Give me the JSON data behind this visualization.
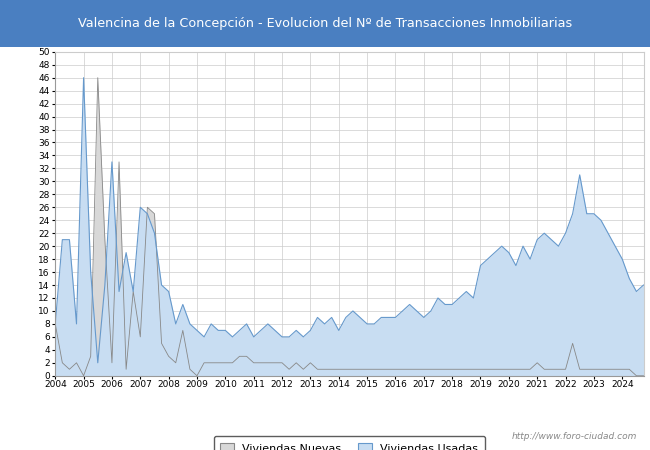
{
  "title": "Valencina de la Concepción - Evolucion del Nº de Transacciones Inmobiliarias",
  "title_bg_color": "#4a7fc1",
  "title_text_color": "white",
  "ylim": [
    0,
    50
  ],
  "yticks": [
    0,
    2,
    4,
    6,
    8,
    10,
    12,
    14,
    16,
    18,
    20,
    22,
    24,
    26,
    28,
    30,
    32,
    34,
    36,
    38,
    40,
    42,
    44,
    46,
    48,
    50
  ],
  "watermark": "http://www.foro-ciudad.com",
  "legend_labels": [
    "Viviendas Nuevas",
    "Viviendas Usadas"
  ],
  "nuevas_fill_color": "#d8d8d8",
  "nuevas_line_color": "#888888",
  "usadas_fill_color": "#c8ddf2",
  "usadas_line_color": "#6699cc",
  "nuevas_data": [
    8,
    2,
    1,
    2,
    0,
    3,
    46,
    21,
    2,
    33,
    1,
    13,
    6,
    26,
    25,
    5,
    3,
    2,
    7,
    1,
    0,
    2,
    2,
    2,
    2,
    2,
    3,
    3,
    2,
    2,
    2,
    2,
    2,
    1,
    2,
    1,
    2,
    1,
    1,
    1,
    1,
    1,
    1,
    1,
    1,
    1,
    1,
    1,
    1,
    1,
    1,
    1,
    1,
    1,
    1,
    1,
    1,
    1,
    1,
    1,
    1,
    1,
    1,
    1,
    1,
    1,
    1,
    1,
    2,
    1,
    1,
    1,
    1,
    5,
    1,
    1,
    1,
    1,
    1,
    1,
    1,
    1,
    0,
    0
  ],
  "usadas_data": [
    8,
    21,
    21,
    8,
    46,
    16,
    2,
    14,
    33,
    13,
    19,
    13,
    26,
    25,
    22,
    14,
    13,
    8,
    11,
    8,
    7,
    6,
    8,
    7,
    7,
    6,
    7,
    8,
    6,
    7,
    8,
    7,
    6,
    6,
    7,
    6,
    7,
    9,
    8,
    9,
    7,
    9,
    10,
    9,
    8,
    8,
    9,
    9,
    9,
    10,
    11,
    10,
    9,
    10,
    12,
    11,
    11,
    12,
    13,
    12,
    17,
    18,
    19,
    20,
    19,
    17,
    20,
    18,
    21,
    22,
    21,
    20,
    22,
    25,
    31,
    25,
    25,
    24,
    22,
    20,
    18,
    15,
    13,
    14
  ]
}
